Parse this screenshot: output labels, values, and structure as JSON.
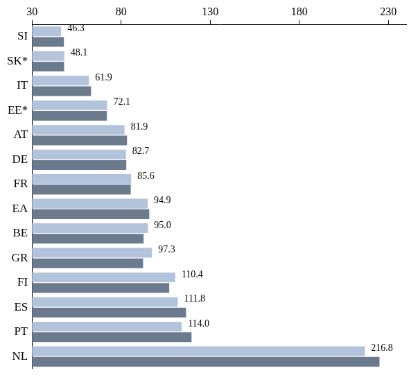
{
  "chart_data": {
    "type": "bar",
    "orientation": "horizontal",
    "categories": [
      "SI",
      "SK*",
      "IT",
      "EE*",
      "AT",
      "DE",
      "FR",
      "EA",
      "BE",
      "GR",
      "FI",
      "ES",
      "PT",
      "NL"
    ],
    "series": [
      {
        "color": "#b3c3dc",
        "data_labels": true,
        "values": [
          46.3,
          48.1,
          61.9,
          72.1,
          81.9,
          82.7,
          85.6,
          94.9,
          95.0,
          97.3,
          110.4,
          111.8,
          114.0,
          216.8
        ],
        "value_labels": [
          "46.3",
          "48.1",
          "61.9",
          "72.1",
          "81.9",
          "82.7",
          "85.6",
          "94.9",
          "95.0",
          "97.3",
          "110.4",
          "111.8",
          "114.0",
          "216.8"
        ]
      },
      {
        "color": "#6c7a8e",
        "data_labels": false,
        "values": [
          47.9,
          48.0,
          63.1,
          72.0,
          83.3,
          82.9,
          85.4,
          95.8,
          92.6,
          92.3,
          107.0,
          116.4,
          119.5,
          225.0
        ]
      }
    ],
    "xlim": [
      30,
      240
    ],
    "xticks": [
      30,
      80,
      130,
      180,
      230
    ],
    "grid": false
  }
}
